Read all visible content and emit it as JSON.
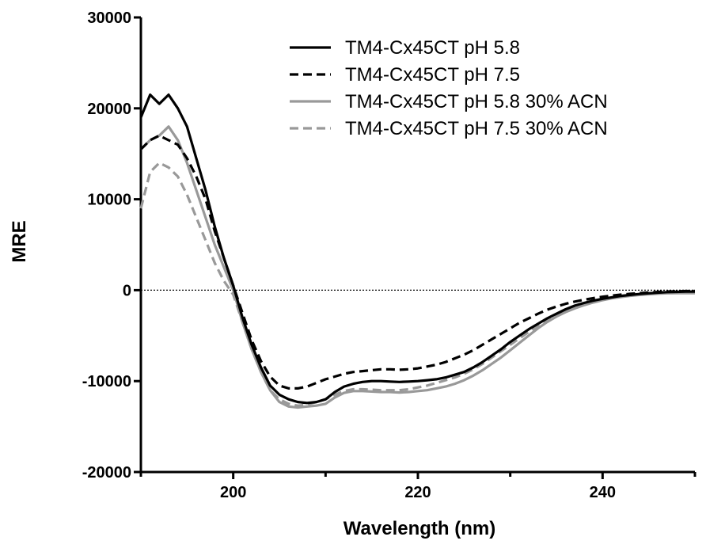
{
  "chart_data": {
    "type": "line",
    "title": "",
    "xlabel": "Wavelength (nm)",
    "ylabel": "MRE",
    "xlim": [
      190,
      250
    ],
    "ylim": [
      -20000,
      30000
    ],
    "x_ticks": [
      200,
      220,
      240
    ],
    "y_ticks": [
      30000,
      20000,
      10000,
      0,
      -10000,
      -20000
    ],
    "x_tick_labels": [
      "200",
      "220",
      "240"
    ],
    "y_tick_labels": [
      "30000",
      "20000",
      "10000",
      "0",
      "-10000",
      "-20000"
    ],
    "zero_line": true,
    "grid": false,
    "legend_position": "top-right",
    "series": [
      {
        "name": "TM4-Cx45CT pH 5.8",
        "color": "#000000",
        "dash": "solid",
        "x": [
          190,
          191,
          192,
          193,
          194,
          195,
          196,
          197,
          198,
          199,
          200,
          201,
          202,
          203,
          204,
          205,
          206,
          207,
          208,
          209,
          210,
          211,
          212,
          213,
          214,
          215,
          216,
          217,
          218,
          219,
          220,
          221,
          222,
          223,
          224,
          225,
          226,
          227,
          228,
          229,
          230,
          231,
          232,
          233,
          234,
          235,
          236,
          237,
          238,
          239,
          240,
          241,
          242,
          243,
          244,
          245,
          246,
          247,
          248,
          249,
          250
        ],
        "y": [
          19000,
          21500,
          20500,
          21500,
          20000,
          18000,
          14500,
          11000,
          7000,
          3500,
          500,
          -3000,
          -6000,
          -8500,
          -10500,
          -11500,
          -12000,
          -12300,
          -12400,
          -12300,
          -12000,
          -11200,
          -10600,
          -10300,
          -10100,
          -10000,
          -10000,
          -10050,
          -10100,
          -10050,
          -10000,
          -9900,
          -9800,
          -9600,
          -9300,
          -9000,
          -8500,
          -7900,
          -7200,
          -6500,
          -5700,
          -5000,
          -4300,
          -3700,
          -3100,
          -2600,
          -2100,
          -1700,
          -1400,
          -1150,
          -950,
          -780,
          -630,
          -520,
          -420,
          -340,
          -270,
          -210,
          -180,
          -160,
          -150
        ]
      },
      {
        "name": "TM4-Cx45CT pH 7.5",
        "color": "#000000",
        "dash": "dashed",
        "x": [
          190,
          191,
          192,
          193,
          194,
          195,
          196,
          197,
          198,
          199,
          200,
          201,
          202,
          203,
          204,
          205,
          206,
          207,
          208,
          209,
          210,
          211,
          212,
          213,
          214,
          215,
          216,
          217,
          218,
          219,
          220,
          221,
          222,
          223,
          224,
          225,
          226,
          227,
          228,
          229,
          230,
          231,
          232,
          233,
          234,
          235,
          236,
          237,
          238,
          239,
          240,
          241,
          242,
          243,
          244,
          245,
          246,
          247,
          248,
          249,
          250
        ],
        "y": [
          15500,
          16500,
          17000,
          16500,
          16000,
          14500,
          12500,
          10000,
          6500,
          3500,
          500,
          -2500,
          -5500,
          -7800,
          -9500,
          -10500,
          -10800,
          -10800,
          -10600,
          -10200,
          -9800,
          -9500,
          -9200,
          -9000,
          -8900,
          -8800,
          -8700,
          -8700,
          -8750,
          -8700,
          -8600,
          -8400,
          -8200,
          -7900,
          -7500,
          -7100,
          -6600,
          -6000,
          -5400,
          -4800,
          -4200,
          -3600,
          -3100,
          -2600,
          -2150,
          -1800,
          -1500,
          -1250,
          -1050,
          -870,
          -720,
          -600,
          -490,
          -400,
          -320,
          -250,
          -190,
          -150,
          -120,
          -100,
          -90
        ]
      },
      {
        "name": "TM4-Cx45CT pH 5.8 30% ACN",
        "color": "#999999",
        "dash": "solid",
        "x": [
          190,
          191,
          192,
          193,
          194,
          195,
          196,
          197,
          198,
          199,
          200,
          201,
          202,
          203,
          204,
          205,
          206,
          207,
          208,
          209,
          210,
          211,
          212,
          213,
          214,
          215,
          216,
          217,
          218,
          219,
          220,
          221,
          222,
          223,
          224,
          225,
          226,
          227,
          228,
          229,
          230,
          231,
          232,
          233,
          234,
          235,
          236,
          237,
          238,
          239,
          240,
          241,
          242,
          243,
          244,
          245,
          246,
          247,
          248,
          249,
          250
        ],
        "y": [
          15500,
          16500,
          17000,
          18000,
          16500,
          14000,
          11000,
          8000,
          5000,
          2500,
          0,
          -3500,
          -6500,
          -9000,
          -11000,
          -12300,
          -12800,
          -12900,
          -12800,
          -12700,
          -12500,
          -11800,
          -11300,
          -11100,
          -11100,
          -11150,
          -11200,
          -11200,
          -11250,
          -11200,
          -11100,
          -11000,
          -10800,
          -10600,
          -10300,
          -9900,
          -9400,
          -8800,
          -8100,
          -7400,
          -6600,
          -5800,
          -5000,
          -4200,
          -3500,
          -2900,
          -2400,
          -2000,
          -1650,
          -1350,
          -1100,
          -900,
          -750,
          -620,
          -520,
          -440,
          -380,
          -340,
          -320,
          -320,
          -330
        ]
      },
      {
        "name": "TM4-Cx45CT pH 7.5 30% ACN",
        "color": "#999999",
        "dash": "dashed",
        "x": [
          190,
          191,
          192,
          193,
          194,
          195,
          196,
          197,
          198,
          199,
          200,
          201,
          202,
          203,
          204,
          205,
          206,
          207,
          208,
          209,
          210,
          211,
          212,
          213,
          214,
          215,
          216,
          217,
          218,
          219,
          220,
          221,
          222,
          223,
          224,
          225,
          226,
          227,
          228,
          229,
          230,
          231,
          232,
          233,
          234,
          235,
          236,
          237,
          238,
          239,
          240,
          241,
          242,
          243,
          244,
          245,
          246,
          247,
          248,
          249,
          250
        ],
        "y": [
          9000,
          13000,
          14000,
          13500,
          12500,
          10500,
          8000,
          5500,
          3000,
          1000,
          -500,
          -3500,
          -6500,
          -9000,
          -11000,
          -12000,
          -12500,
          -12700,
          -12600,
          -12300,
          -12000,
          -11500,
          -11100,
          -10900,
          -10900,
          -10950,
          -11000,
          -11000,
          -11000,
          -10900,
          -10700,
          -10500,
          -10200,
          -9900,
          -9600,
          -9200,
          -8700,
          -8100,
          -7400,
          -6700,
          -6000,
          -5300,
          -4600,
          -3900,
          -3300,
          -2800,
          -2300,
          -1900,
          -1600,
          -1300,
          -1050,
          -850,
          -700,
          -580,
          -480,
          -400,
          -340,
          -300,
          -280,
          -280,
          -300
        ]
      }
    ]
  }
}
